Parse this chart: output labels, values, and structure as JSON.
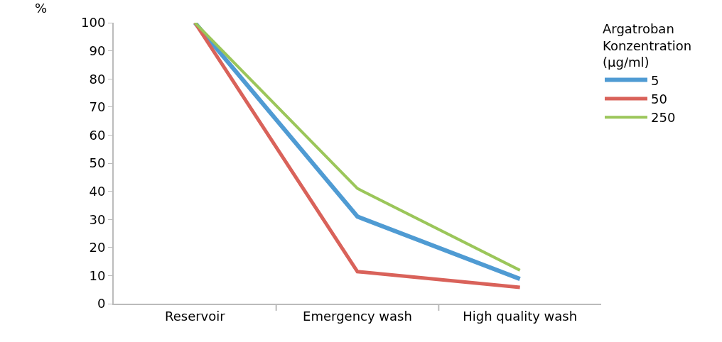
{
  "chart_data": {
    "type": "line",
    "ylabel": "%",
    "legend_title": "Argatroban Konzentration (µg/ml)",
    "categories": [
      "Reservoir",
      "Emergency wash",
      "High quality wash"
    ],
    "series": [
      {
        "name": "5",
        "color": "#4f9bd3",
        "values": [
          100,
          31,
          8.8
        ]
      },
      {
        "name": "50",
        "color": "#d9625a",
        "values": [
          100,
          11.4,
          5.8
        ]
      },
      {
        "name": "250",
        "color": "#9bc65a",
        "values": [
          100,
          41,
          11.9
        ]
      }
    ],
    "ylim": [
      0,
      100
    ],
    "yticks": [
      0,
      10,
      20,
      30,
      40,
      50,
      60,
      70,
      80,
      90,
      100
    ],
    "grid": false,
    "legend": "right",
    "marker": "none",
    "line_style": "solid"
  }
}
